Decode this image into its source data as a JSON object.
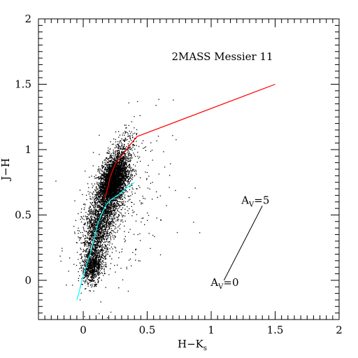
{
  "chart_data": {
    "type": "scatter",
    "title": "2MASS Messier 11",
    "xlabel": "H−K",
    "xlabel_sub": "s",
    "ylabel": "J−H",
    "xlim": [
      -0.35,
      2.0
    ],
    "ylim": [
      -0.3,
      2.0
    ],
    "grid": false,
    "mirrored_axes": true,
    "x_ticks": [
      {
        "value": 0,
        "label": "0"
      },
      {
        "value": 0.5,
        "label": "0.5"
      },
      {
        "value": 1,
        "label": "1"
      },
      {
        "value": 1.5,
        "label": "1.5"
      },
      {
        "value": 2,
        "label": "2"
      }
    ],
    "y_ticks": [
      {
        "value": 0,
        "label": "0"
      },
      {
        "value": 0.5,
        "label": "0.5"
      },
      {
        "value": 1,
        "label": "1"
      },
      {
        "value": 1.5,
        "label": "1.5"
      },
      {
        "value": 2,
        "label": "2"
      }
    ],
    "scatter_clusters": [
      {
        "cx": 0.23,
        "cy": 0.76,
        "sx": 0.055,
        "sy": 0.09,
        "rho": 0.45,
        "n": 3000
      },
      {
        "cx": 0.07,
        "cy": 0.12,
        "sx": 0.04,
        "sy": 0.07,
        "rho": 0.2,
        "n": 900
      },
      {
        "cx": 0.11,
        "cy": 0.38,
        "sx": 0.06,
        "sy": 0.12,
        "rho": 0.3,
        "n": 1100
      },
      {
        "cx": 0.2,
        "cy": 0.62,
        "sx": 0.08,
        "sy": 0.16,
        "rho": 0.55,
        "n": 1200
      },
      {
        "cx": 0.28,
        "cy": 0.95,
        "sx": 0.06,
        "sy": 0.1,
        "rho": 0.6,
        "n": 400
      },
      {
        "cx": 0.3,
        "cy": 0.5,
        "sx": 0.2,
        "sy": 0.35,
        "rho": 0.3,
        "n": 250
      }
    ],
    "series": [
      {
        "color": "#ff0000",
        "x": [
          0.17,
          0.19,
          0.21,
          0.25,
          0.3,
          0.36,
          0.42,
          1.5
        ],
        "y": [
          0.63,
          0.7,
          0.79,
          0.89,
          0.95,
          1.03,
          1.1,
          1.5
        ]
      },
      {
        "color": "#00ffff",
        "x": [
          -0.05,
          -0.03,
          -0.01,
          0.01,
          0.03,
          0.06,
          0.08,
          0.1,
          0.12,
          0.15,
          0.18,
          0.22,
          0.27,
          0.33,
          0.4
        ],
        "y": [
          -0.15,
          -0.08,
          0.0,
          0.07,
          0.13,
          0.22,
          0.3,
          0.38,
          0.45,
          0.52,
          0.58,
          0.62,
          0.65,
          0.7,
          0.75
        ]
      }
    ],
    "reddening_vector": {
      "x": [
        1.1,
        1.4
      ],
      "y": [
        0.0,
        0.57
      ],
      "start_label": {
        "text": "A",
        "sub": "V",
        "value": "=0"
      },
      "end_label": {
        "text": "A",
        "sub": "V",
        "value": "=5"
      }
    }
  }
}
